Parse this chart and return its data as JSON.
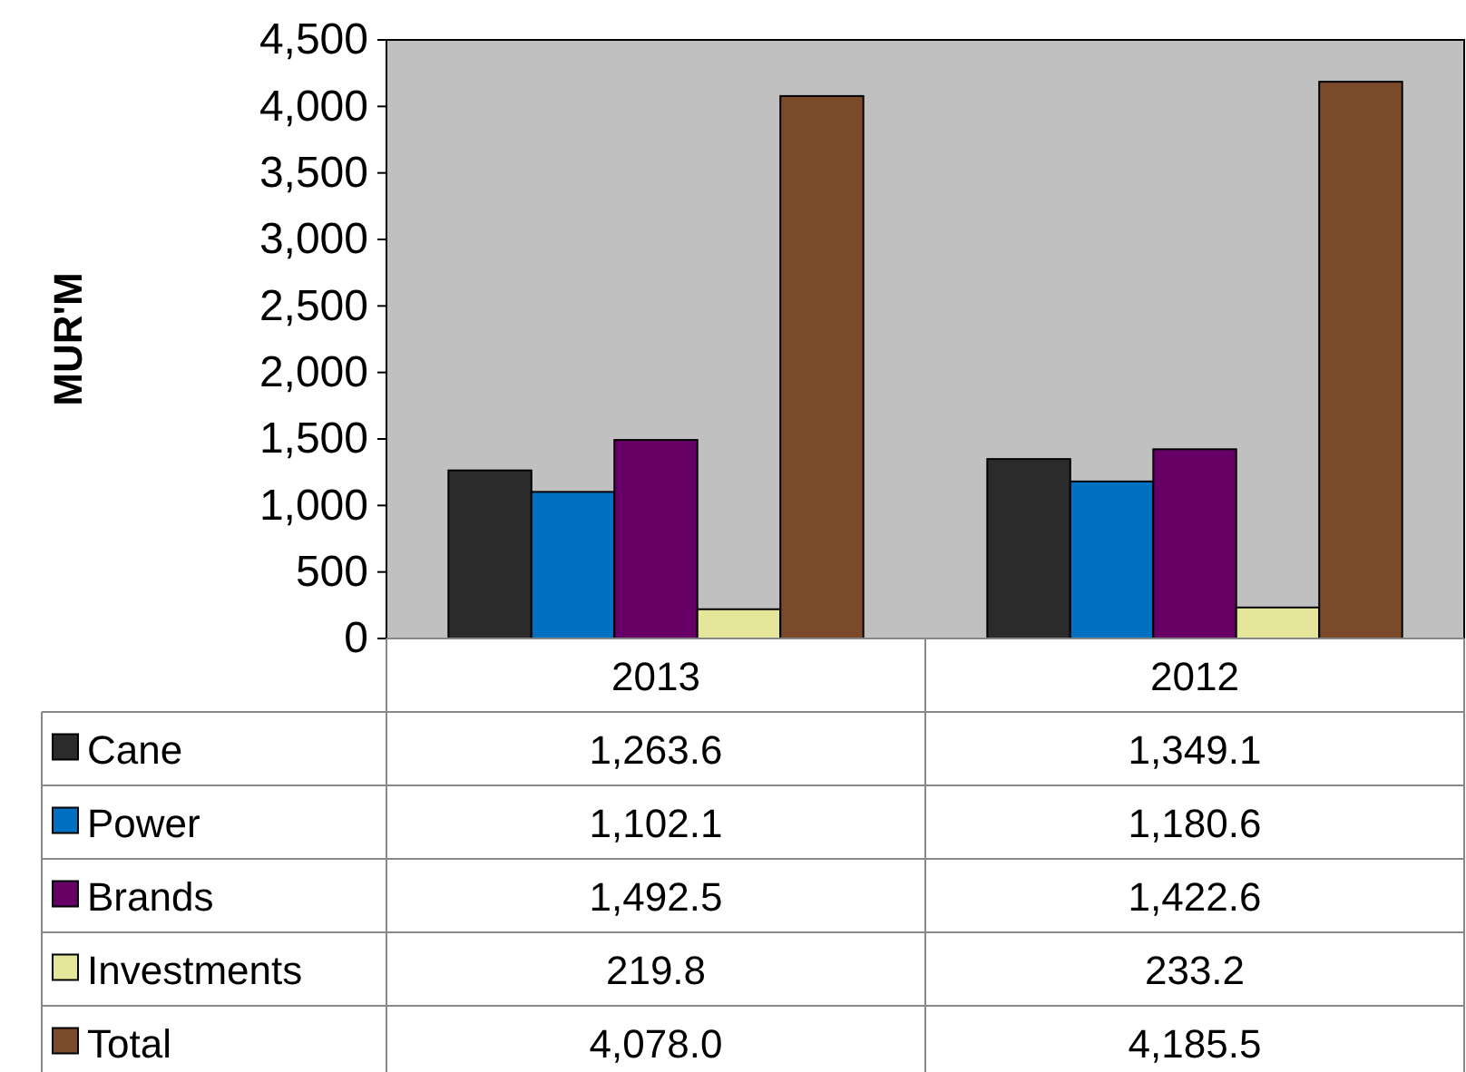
{
  "chart_data": {
    "type": "bar",
    "ylabel": "MUR'M",
    "categories": [
      "2013",
      "2012"
    ],
    "ylim": [
      0,
      4500
    ],
    "yticks": [
      {
        "value": 0,
        "label": "0"
      },
      {
        "value": 500,
        "label": "500"
      },
      {
        "value": 1000,
        "label": "1,000"
      },
      {
        "value": 1500,
        "label": "1,500"
      },
      {
        "value": 2000,
        "label": "2,000"
      },
      {
        "value": 2500,
        "label": "2,500"
      },
      {
        "value": 3000,
        "label": "3,000"
      },
      {
        "value": 3500,
        "label": "3,500"
      },
      {
        "value": 4000,
        "label": "4,000"
      },
      {
        "value": 4500,
        "label": "4,500"
      }
    ],
    "legend": "bottom",
    "grid": false,
    "series": [
      {
        "name": "Cane",
        "color": "#2b2b2b",
        "values": [
          1263.6,
          1349.1
        ],
        "value_labels": [
          "1,263.6",
          "1,349.1"
        ]
      },
      {
        "name": "Power",
        "color": "#0070c0",
        "values": [
          1102.1,
          1180.6
        ],
        "value_labels": [
          "1,102.1",
          "1,180.6"
        ]
      },
      {
        "name": "Brands",
        "color": "#660066",
        "values": [
          1492.5,
          1422.6
        ],
        "value_labels": [
          "1,492.5",
          "1,422.6"
        ]
      },
      {
        "name": "Investments",
        "color": "#e6e69a",
        "values": [
          219.8,
          233.2
        ],
        "value_labels": [
          "219.8",
          "233.2"
        ]
      },
      {
        "name": "Total",
        "color": "#7b4a2a",
        "values": [
          4078.0,
          4185.5
        ],
        "value_labels": [
          "4,078.0",
          "4,185.5"
        ]
      }
    ]
  }
}
